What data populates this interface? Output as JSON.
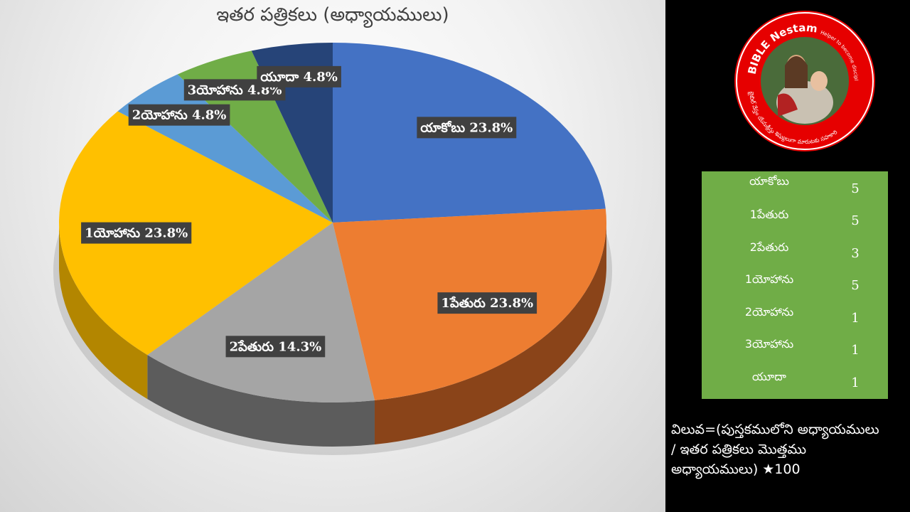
{
  "chart_data": {
    "type": "pie",
    "title": "ఇతర పత్రికలు (అధ్యాయములు)",
    "slices": [
      {
        "label": "యాకోబు",
        "value": 23.8,
        "display": "యాకోబు 23.8%",
        "color": "#4472c4",
        "side": "#2f528f"
      },
      {
        "label": "1పేతురు",
        "value": 23.8,
        "display": "1పేతురు 23.8%",
        "color": "#ed7d31",
        "side": "#8a4419"
      },
      {
        "label": "2పేతురు",
        "value": 14.3,
        "display": "2పేతురు 14.3%",
        "color": "#a5a5a5",
        "side": "#5c5c5c"
      },
      {
        "label": "1యోహాను",
        "value": 23.8,
        "display": "1యోహాను 23.8%",
        "color": "#ffc000",
        "side": "#b38600"
      },
      {
        "label": "2యోహాను",
        "value": 4.8,
        "display": "2యోహాను 4.8%",
        "color": "#5b9bd5",
        "side": "#3a6a96"
      },
      {
        "label": "3యోహాను",
        "value": 4.8,
        "display": "3యోహాను 4.8%",
        "color": "#70ad47",
        "side": "#4a7a2c"
      },
      {
        "label": "యూదా",
        "value": 4.8,
        "display": "యూదా 4.8%",
        "color": "#264478",
        "side": "#172a4a"
      }
    ]
  },
  "logo": {
    "brand": "BIBLE Nestam",
    "tagline": "Helper to become disciple of JESUS CHRIST",
    "telugu_text": "బైబిల్ నేస్తం యేసుక్రీస్తు శిష్యులుగా మారుటకు సహకారి"
  },
  "table": [
    {
      "name": "యాకోబు",
      "value": "5"
    },
    {
      "name": "1పేతురు",
      "value": "5"
    },
    {
      "name": "2పేతురు",
      "value": "3"
    },
    {
      "name": "1యోహాను",
      "value": "5"
    },
    {
      "name": "2యోహాను",
      "value": "1"
    },
    {
      "name": "3యోహాను",
      "value": "1"
    },
    {
      "name": "యూదా",
      "value": "1"
    }
  ],
  "formula": {
    "line1": "విలువ=(పుస్తకములోని అధ్యాయములు",
    "line2": "/ ఇతర పత్రికలు మొత్తము",
    "line3": "అధ్యాయములు) ★100"
  }
}
